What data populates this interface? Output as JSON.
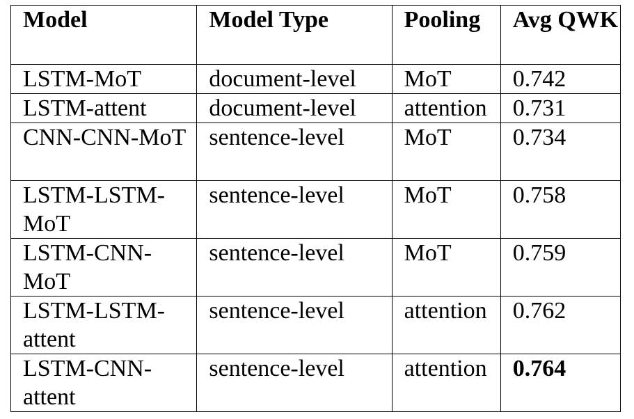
{
  "table": {
    "headers": {
      "model": "Model",
      "model_type": "Model Type",
      "pooling": "Pooling",
      "avg_qwk": "Avg QWK"
    },
    "rows": [
      {
        "model": "LSTM-MoT",
        "model_type": "document-level",
        "pooling": "MoT",
        "avg_qwk": "0.742"
      },
      {
        "model": "LSTM-attent",
        "model_type": "document-level",
        "pooling": "attention",
        "avg_qwk": "0.731"
      },
      {
        "model": "CNN-CNN-MoT",
        "model_type": "sentence-level",
        "pooling": "MoT",
        "avg_qwk": "0.734"
      },
      {
        "model": "LSTM-LSTM-MoT",
        "model_type": "sentence-level",
        "pooling": "MoT",
        "avg_qwk": "0.758"
      },
      {
        "model": "LSTM-CNN-MoT",
        "model_type": "sentence-level",
        "pooling": "MoT",
        "avg_qwk": "0.759"
      },
      {
        "model": "LSTM-LSTM-attent",
        "model_type": "sentence-level",
        "pooling": "attention",
        "avg_qwk": "0.762"
      },
      {
        "model": "LSTM-CNN-attent",
        "model_type": "sentence-level",
        "pooling": "attention",
        "avg_qwk": "0.764"
      }
    ]
  }
}
